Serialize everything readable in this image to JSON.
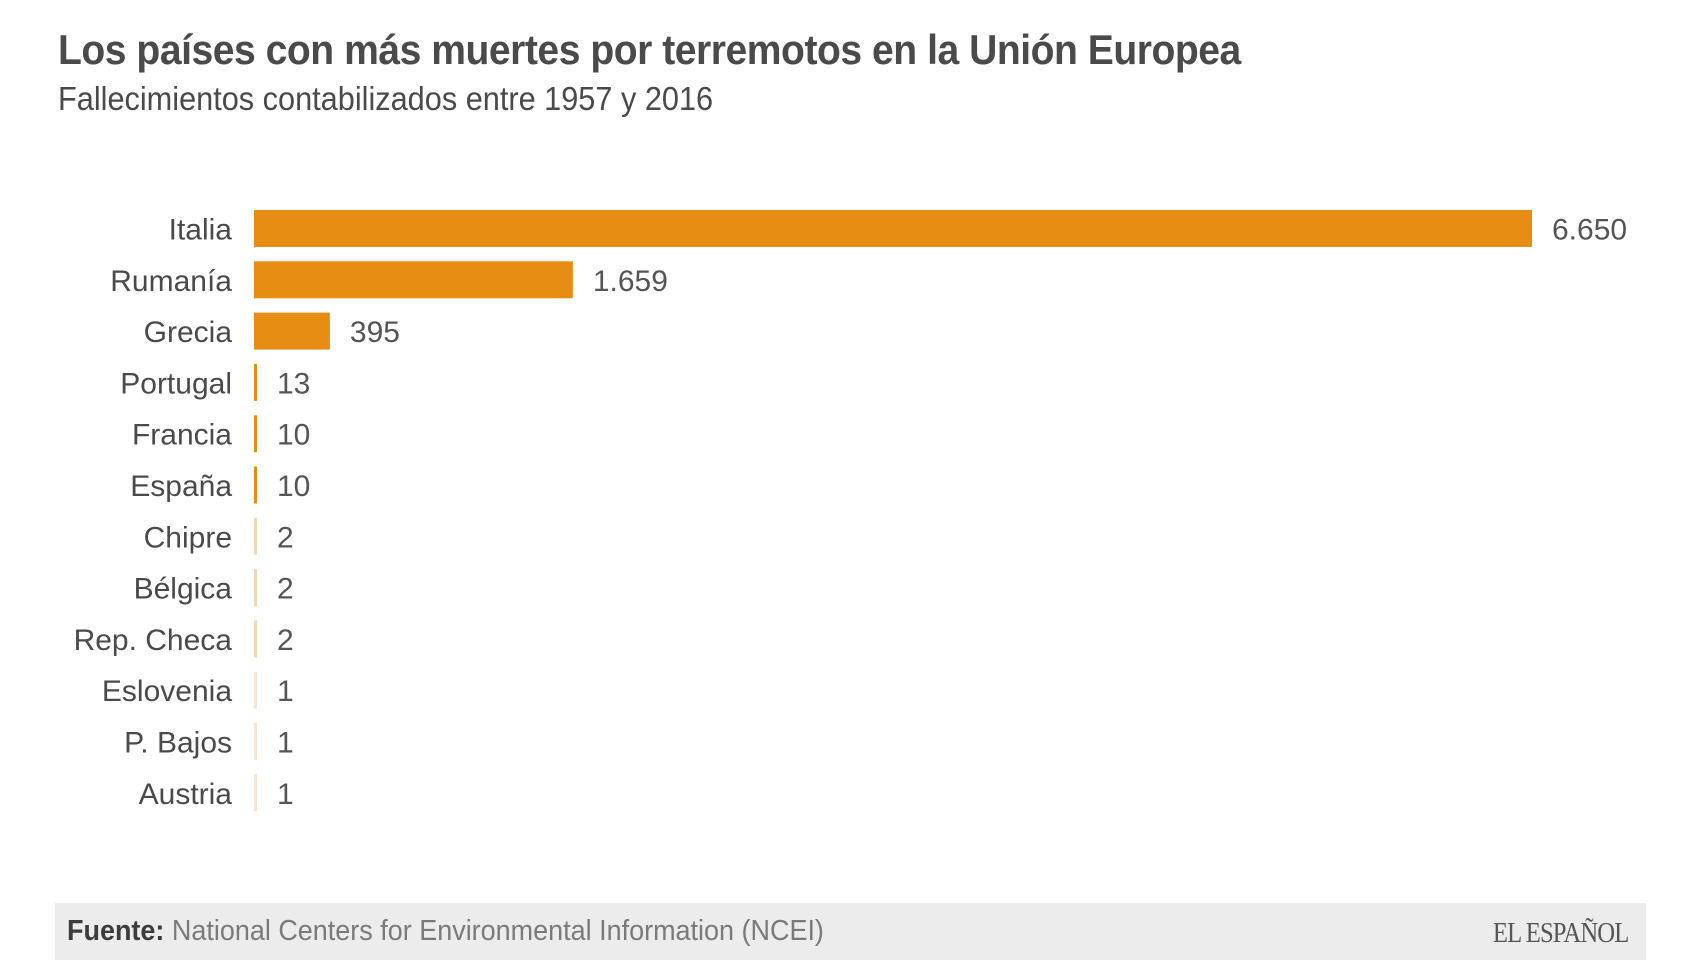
{
  "header": {
    "title": "Los países con más muertes por terremotos en la Unión Europea",
    "subtitle": "Fallecimientos contabilizados entre 1957 y 2016"
  },
  "footer": {
    "source_key": "Fuente:",
    "source_value": " National Centers for Environmental Information (NCEI)",
    "logo": "EL ESPAÑOL"
  },
  "colors": {
    "bar": "#e88d14",
    "text": "#4a4a4a",
    "footer_bg": "#ececec"
  },
  "chart_data": {
    "type": "bar",
    "orientation": "horizontal",
    "title": "Los países con más muertes por terremotos en la Unión Europea",
    "subtitle": "Fallecimientos contabilizados entre 1957 y 2016",
    "xlabel": "",
    "ylabel": "",
    "grid": false,
    "categories": [
      "Italia",
      "Rumanía",
      "Grecia",
      "Portugal",
      "Francia",
      "España",
      "Chipre",
      "Bélgica",
      "Rep. Checa",
      "Eslovenia",
      "P. Bajos",
      "Austria"
    ],
    "values": [
      6650,
      1659,
      395,
      13,
      10,
      10,
      2,
      2,
      2,
      1,
      1,
      1
    ],
    "value_labels": [
      "6.650",
      "1.659",
      "395",
      "13",
      "10",
      "10",
      "2",
      "2",
      "2",
      "1",
      "1",
      "1"
    ],
    "xlim": [
      0,
      6650
    ]
  }
}
